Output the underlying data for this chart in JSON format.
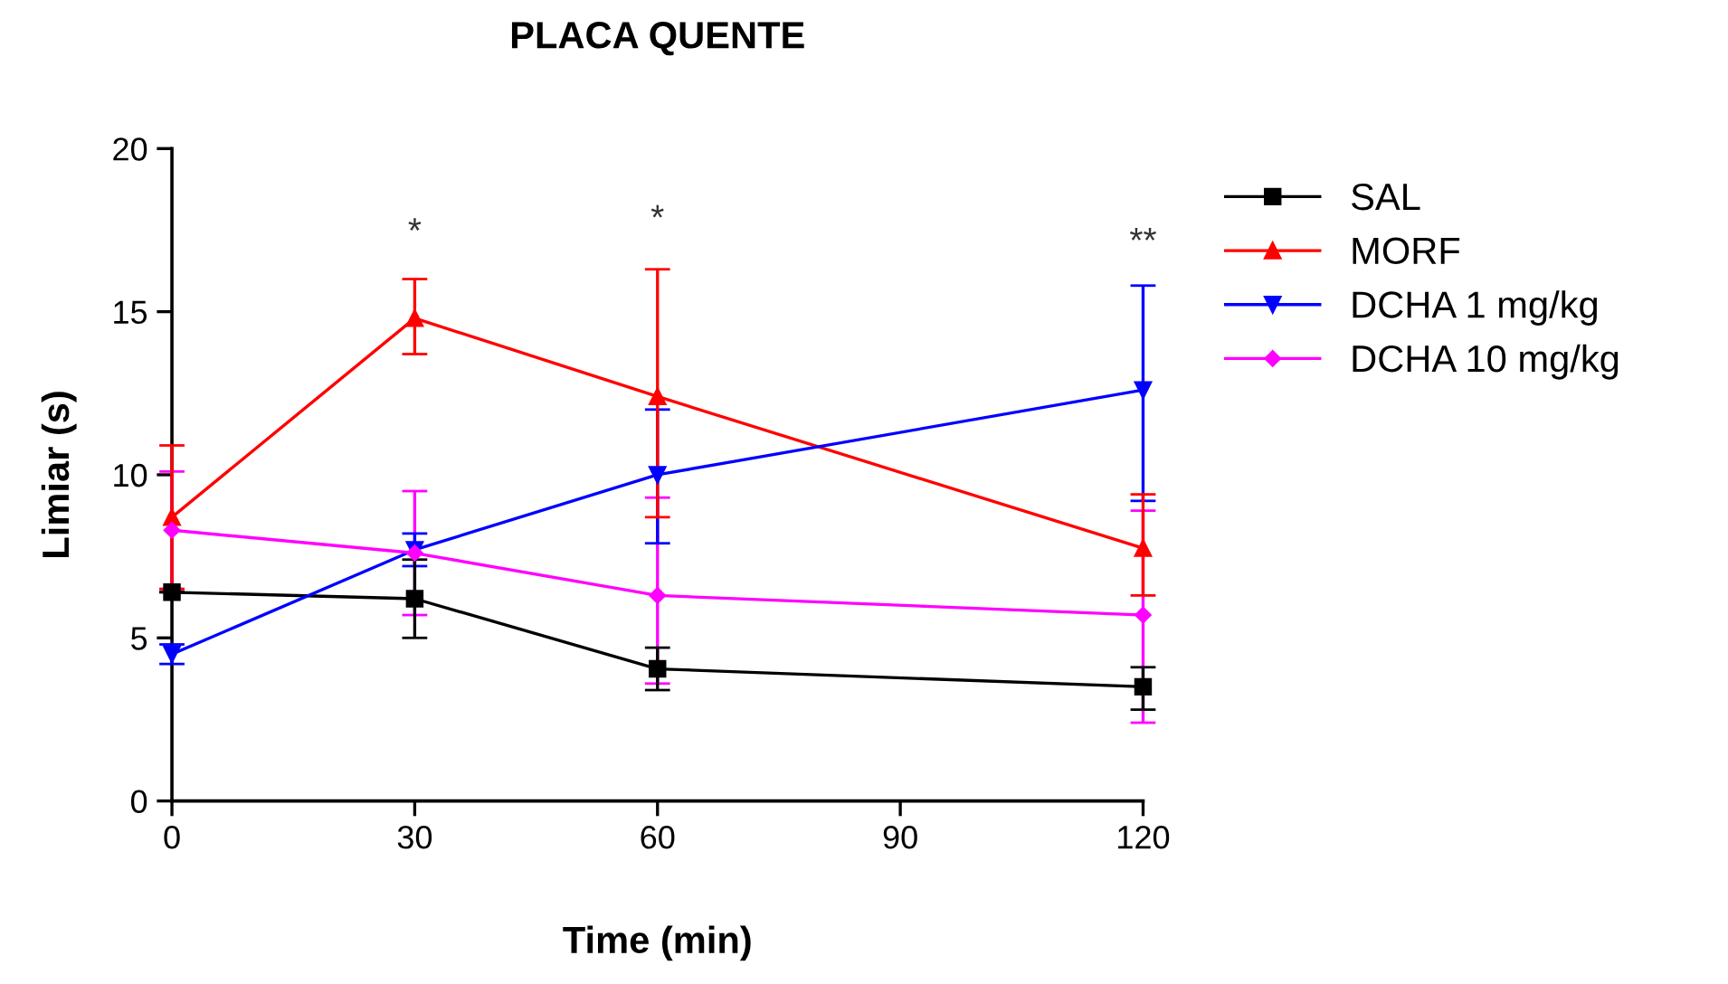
{
  "chart_data": {
    "type": "line",
    "title": "PLACA QUENTE",
    "xlabel": "Time (min)",
    "ylabel": "Limiar (s)",
    "x": [
      0,
      30,
      60,
      120
    ],
    "xlim": [
      0,
      120
    ],
    "xticks": [
      0,
      30,
      60,
      90,
      120
    ],
    "ylim": [
      0,
      20
    ],
    "yticks": [
      0,
      5,
      10,
      15,
      20
    ],
    "grid": false,
    "legend": "right",
    "series": [
      {
        "name": "SAL",
        "color": "#000000",
        "marker": "square",
        "values": [
          6.4,
          6.2,
          4.05,
          3.5
        ],
        "errors": [
          null,
          1.2,
          [
            3.4,
            4.7
          ],
          [
            2.8,
            4.1
          ]
        ]
      },
      {
        "name": "MORF",
        "color": "#ff0000",
        "marker": "triangle",
        "values": [
          8.7,
          14.8,
          12.4,
          7.75
        ],
        "errors": [
          2.2,
          [
            13.7,
            16.0
          ],
          [
            8.7,
            16.3
          ],
          [
            6.3,
            9.4
          ]
        ]
      },
      {
        "name": "DCHA 1 mg/kg",
        "color": "#0000ff",
        "marker": "triangle_down",
        "values": [
          4.5,
          7.7,
          10.0,
          12.6
        ],
        "errors": [
          0.3,
          0.5,
          [
            7.9,
            12.0
          ],
          [
            9.2,
            15.8
          ]
        ]
      },
      {
        "name": "DCHA 10 mg/kg",
        "color": "#ff00ff",
        "marker": "diamond",
        "values": [
          8.3,
          7.6,
          6.3,
          5.7
        ],
        "errors": [
          1.8,
          [
            5.7,
            9.5
          ],
          [
            3.6,
            9.3
          ],
          [
            2.4,
            8.9
          ]
        ]
      }
    ],
    "annotations": [
      "*",
      "*",
      "**"
    ]
  }
}
